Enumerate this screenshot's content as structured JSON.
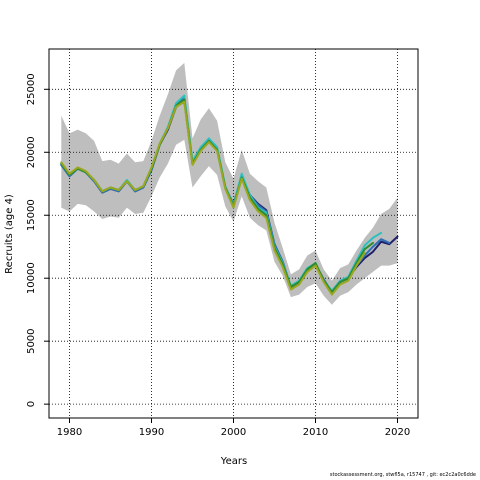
{
  "footer_note": "stockassessment.org, stwfl5a, r15747 , git: ec2c2a0c6dde",
  "chart_data": {
    "type": "line",
    "title": "",
    "xlabel": "Years",
    "ylabel": "Recruits (age 4)",
    "xlim": [
      1977.5,
      2022.5
    ],
    "ylim": [
      -1100,
      28200
    ],
    "x_ticks": [
      1980,
      1990,
      2000,
      2010,
      2020
    ],
    "y_ticks": [
      0,
      5000,
      10000,
      15000,
      20000,
      25000
    ],
    "grid": true,
    "legend": "none",
    "band_color": "#bebebe",
    "band": {
      "x": [
        1979,
        1980,
        1981,
        1982,
        1983,
        1984,
        1985,
        1986,
        1987,
        1988,
        1989,
        1990,
        1991,
        1992,
        1993,
        1994,
        1995,
        1996,
        1997,
        1998,
        1999,
        2000,
        2001,
        2002,
        2003,
        2004,
        2005,
        2006,
        2007,
        2008,
        2009,
        2010,
        2011,
        2012,
        2013,
        2014,
        2015,
        2016,
        2017,
        2018,
        2019,
        2020
      ],
      "upper": [
        22900,
        21500,
        21800,
        21500,
        20900,
        19300,
        19400,
        19100,
        19900,
        19200,
        19300,
        20900,
        22900,
        24600,
        26500,
        27100,
        21100,
        22600,
        23500,
        22500,
        19200,
        17900,
        20200,
        18300,
        17700,
        17200,
        14400,
        12400,
        10300,
        10700,
        11800,
        12200,
        10700,
        9800,
        10800,
        11100,
        12200,
        13200,
        14000,
        15100,
        15500,
        16400
      ],
      "lower": [
        15600,
        15300,
        15900,
        15800,
        15300,
        14700,
        14900,
        14800,
        15600,
        15100,
        15200,
        16500,
        18000,
        19100,
        20600,
        21000,
        17200,
        18100,
        18900,
        18200,
        15700,
        14500,
        16500,
        14800,
        14200,
        13800,
        11300,
        10200,
        8500,
        8700,
        9300,
        9600,
        8600,
        7900,
        8600,
        8900,
        9500,
        10000,
        10500,
        11000,
        11000,
        11200
      ]
    },
    "series": [
      {
        "color": "#1f1f6b",
        "x": [
          1979,
          1980,
          1981,
          1982,
          1983,
          1984,
          1985,
          1986,
          1987,
          1988,
          1989,
          1990,
          1991,
          1992,
          1993,
          1994,
          1995,
          1996,
          1997,
          1998,
          1999,
          2000,
          2001,
          2002,
          2003,
          2004,
          2005,
          2006,
          2007,
          2008,
          2009,
          2010,
          2011,
          2012,
          2013,
          2014,
          2015,
          2016,
          2017,
          2018,
          2019,
          2020
        ],
        "y": [
          19000,
          18100,
          18700,
          18400,
          17700,
          16800,
          17100,
          16900,
          17700,
          16900,
          17200,
          18600,
          20600,
          21800,
          23600,
          24100,
          19100,
          20200,
          21000,
          20200,
          17200,
          15900,
          18100,
          16600,
          15900,
          15400,
          12700,
          11300,
          9300,
          9700,
          10700,
          11100,
          9900,
          8900,
          9700,
          10000,
          10900,
          11600,
          12100,
          12900,
          12700,
          13300
        ]
      },
      {
        "color": "#2f6fb5",
        "x": [
          1979,
          1980,
          1981,
          1982,
          1983,
          1984,
          1985,
          1986,
          1987,
          1988,
          1989,
          1990,
          1991,
          1992,
          1993,
          1994,
          1995,
          1996,
          1997,
          1998,
          1999,
          2000,
          2001,
          2002,
          2003,
          2004,
          2005,
          2006,
          2007,
          2008,
          2009,
          2010,
          2011,
          2012,
          2013,
          2014,
          2015,
          2016,
          2017,
          2018,
          2019
        ],
        "y": [
          19000,
          18100,
          18700,
          18400,
          17700,
          16800,
          17100,
          16900,
          17700,
          16900,
          17200,
          18600,
          20600,
          21900,
          23800,
          24300,
          19100,
          20300,
          21000,
          20300,
          17200,
          15800,
          18100,
          16600,
          15800,
          15300,
          12700,
          11300,
          9300,
          9700,
          10700,
          11100,
          9900,
          8900,
          9700,
          10000,
          11000,
          11800,
          12500,
          13100,
          12800
        ]
      },
      {
        "color": "#2fbfbf",
        "x": [
          1979,
          1980,
          1981,
          1982,
          1983,
          1984,
          1985,
          1986,
          1987,
          1988,
          1989,
          1990,
          1991,
          1992,
          1993,
          1994,
          1995,
          1996,
          1997,
          1998,
          1999,
          2000,
          2001,
          2002,
          2003,
          2004,
          2005,
          2006,
          2007,
          2008,
          2009,
          2010,
          2011,
          2012,
          2013,
          2014,
          2015,
          2016,
          2017,
          2018
        ],
        "y": [
          19100,
          18200,
          18700,
          18400,
          17800,
          16900,
          17200,
          17000,
          17800,
          17000,
          17300,
          18700,
          20700,
          22000,
          23900,
          24500,
          19300,
          20400,
          21100,
          20400,
          17300,
          15800,
          18300,
          16600,
          15600,
          15200,
          12500,
          11200,
          9400,
          9800,
          10800,
          11200,
          9800,
          9000,
          9800,
          10100,
          11400,
          12600,
          13200,
          13600
        ]
      },
      {
        "color": "#2e8b2e",
        "x": [
          1979,
          1980,
          1981,
          1982,
          1983,
          1984,
          1985,
          1986,
          1987,
          1988,
          1989,
          1990,
          1991,
          1992,
          1993,
          1994,
          1995,
          1996,
          1997,
          1998,
          1999,
          2000,
          2001,
          2002,
          2003,
          2004,
          2005,
          2006,
          2007,
          2008,
          2009,
          2010,
          2011,
          2012,
          2013,
          2014,
          2015,
          2016,
          2017
        ],
        "y": [
          19100,
          18200,
          18700,
          18400,
          17800,
          16900,
          17200,
          17000,
          17700,
          17000,
          17300,
          18700,
          20600,
          21900,
          23700,
          24200,
          19100,
          20200,
          20900,
          20200,
          17200,
          15700,
          18000,
          16400,
          15500,
          15000,
          12400,
          11100,
          9300,
          9700,
          10700,
          11200,
          9800,
          8900,
          9700,
          10000,
          11200,
          12300,
          12800
        ]
      },
      {
        "color": "#9aa820",
        "x": [
          1979,
          1980,
          1981,
          1982,
          1983,
          1984,
          1985,
          1986,
          1987,
          1988,
          1989,
          1990,
          1991,
          1992,
          1993,
          1994,
          1995,
          1996,
          1997,
          1998,
          1999,
          2000,
          2001,
          2002,
          2003,
          2004,
          2005,
          2006,
          2007,
          2008,
          2009,
          2010,
          2011,
          2012,
          2013,
          2014,
          2015,
          2016
        ],
        "y": [
          19200,
          18300,
          18800,
          18500,
          17800,
          16900,
          17200,
          17000,
          17700,
          17000,
          17300,
          18800,
          20700,
          21900,
          23600,
          24000,
          19000,
          20100,
          20800,
          20100,
          17100,
          15600,
          17900,
          16200,
          15300,
          14800,
          12200,
          10900,
          9100,
          9500,
          10500,
          11000,
          9700,
          8700,
          9500,
          9800,
          11000,
          12000
        ]
      }
    ]
  }
}
